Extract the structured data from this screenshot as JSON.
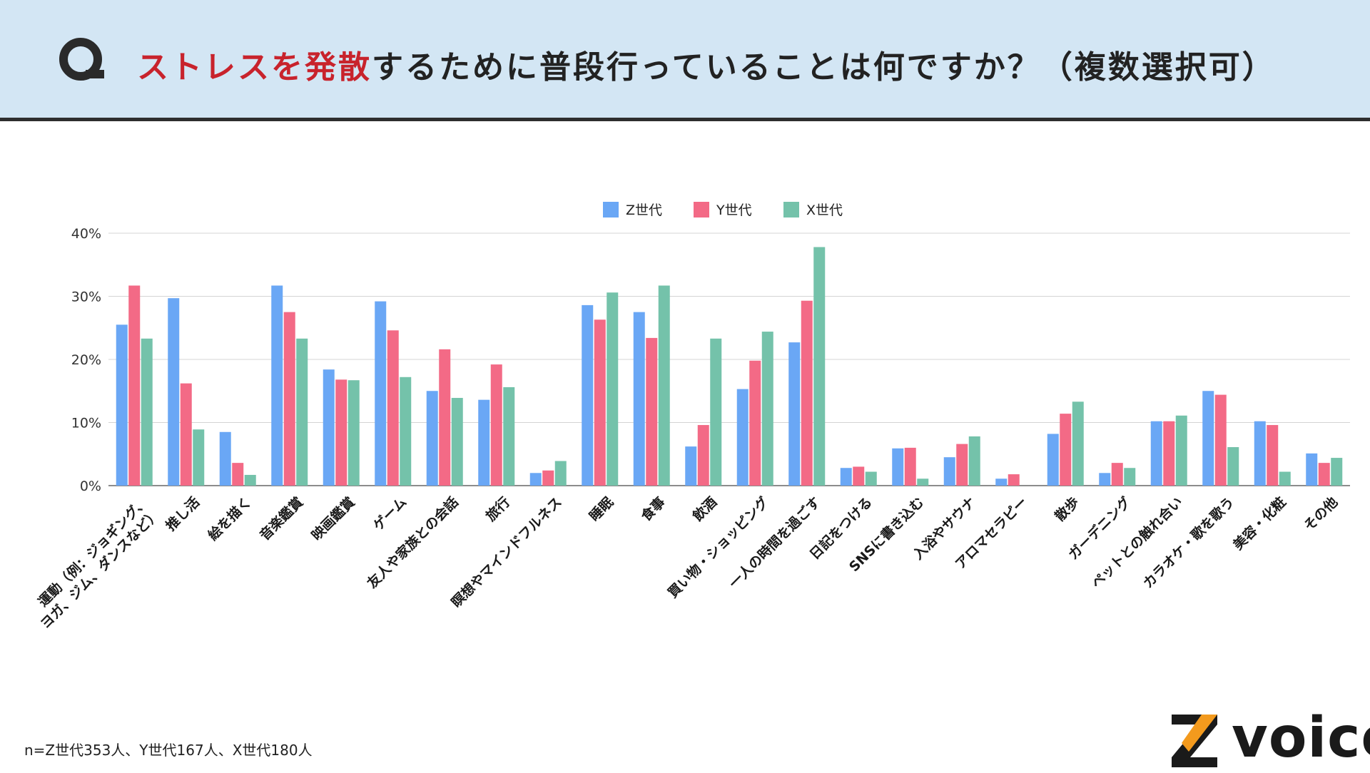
{
  "header": {
    "question_icon": "q-icon",
    "title_highlight": "ストレスを発散",
    "title_rest": "するために普段行っていることは何ですか？（複数選択可）"
  },
  "colors": {
    "z": "#6aa7f5",
    "y": "#f36a86",
    "x": "#74c2aa",
    "highlight": "#c8232c",
    "header_bg": "#d3e6f4",
    "logo_orange": "#f39a1d"
  },
  "chart_data": {
    "type": "bar",
    "title": "ストレスを発散するために普段行っていることは何ですか？（複数選択可）",
    "xlabel": "",
    "ylabel": "",
    "ylim": [
      0,
      40
    ],
    "yticks": [
      "0%",
      "10%",
      "20%",
      "30%",
      "40%"
    ],
    "legend_position": "top-center",
    "categories": [
      [
        "運動（例：ジョギング、",
        "ヨガ、ジム、ダンスなど）"
      ],
      [
        "推し活"
      ],
      [
        "絵を描く"
      ],
      [
        "音楽鑑賞"
      ],
      [
        "映画鑑賞"
      ],
      [
        "ゲーム"
      ],
      [
        "友人や家族との会話"
      ],
      [
        "旅行"
      ],
      [
        "瞑想やマインドフルネス"
      ],
      [
        "睡眠"
      ],
      [
        "食事"
      ],
      [
        "飲酒"
      ],
      [
        "買い物・ショッピング"
      ],
      [
        "一人の時間を過ごす"
      ],
      [
        "日記をつける"
      ],
      [
        "SNSに書き込む"
      ],
      [
        "入浴やサウナ"
      ],
      [
        "アロマセラピー"
      ],
      [
        "散歩"
      ],
      [
        "ガーデニング"
      ],
      [
        "ペットとの触れ合い"
      ],
      [
        "カラオケ・歌を歌う"
      ],
      [
        "美容・化粧"
      ],
      [
        "その他"
      ]
    ],
    "series": [
      {
        "name": "Z世代",
        "values": [
          25.5,
          29.7,
          8.5,
          31.7,
          18.4,
          29.2,
          15.0,
          13.6,
          2.0,
          28.6,
          27.5,
          6.2,
          15.3,
          22.7,
          2.8,
          5.9,
          4.5,
          1.1,
          8.2,
          2.0,
          10.2,
          15.0,
          10.2,
          5.1
        ]
      },
      {
        "name": "Y世代",
        "values": [
          31.7,
          16.2,
          3.6,
          27.5,
          16.8,
          24.6,
          21.6,
          19.2,
          2.4,
          26.3,
          23.4,
          9.6,
          19.8,
          29.3,
          3.0,
          6.0,
          6.6,
          1.8,
          11.4,
          3.6,
          10.2,
          14.4,
          9.6,
          3.6
        ]
      },
      {
        "name": "X世代",
        "values": [
          23.3,
          8.9,
          1.7,
          23.3,
          16.7,
          17.2,
          13.9,
          15.6,
          3.9,
          30.6,
          31.7,
          23.3,
          24.4,
          37.8,
          2.2,
          1.1,
          7.8,
          0.0,
          13.3,
          2.8,
          11.1,
          6.1,
          2.2,
          4.4
        ]
      }
    ]
  },
  "footer": {
    "note": "n=Z世代353人、Y世代167人、X世代180人",
    "logo_text": "voice",
    "logo_mark": "Z"
  }
}
